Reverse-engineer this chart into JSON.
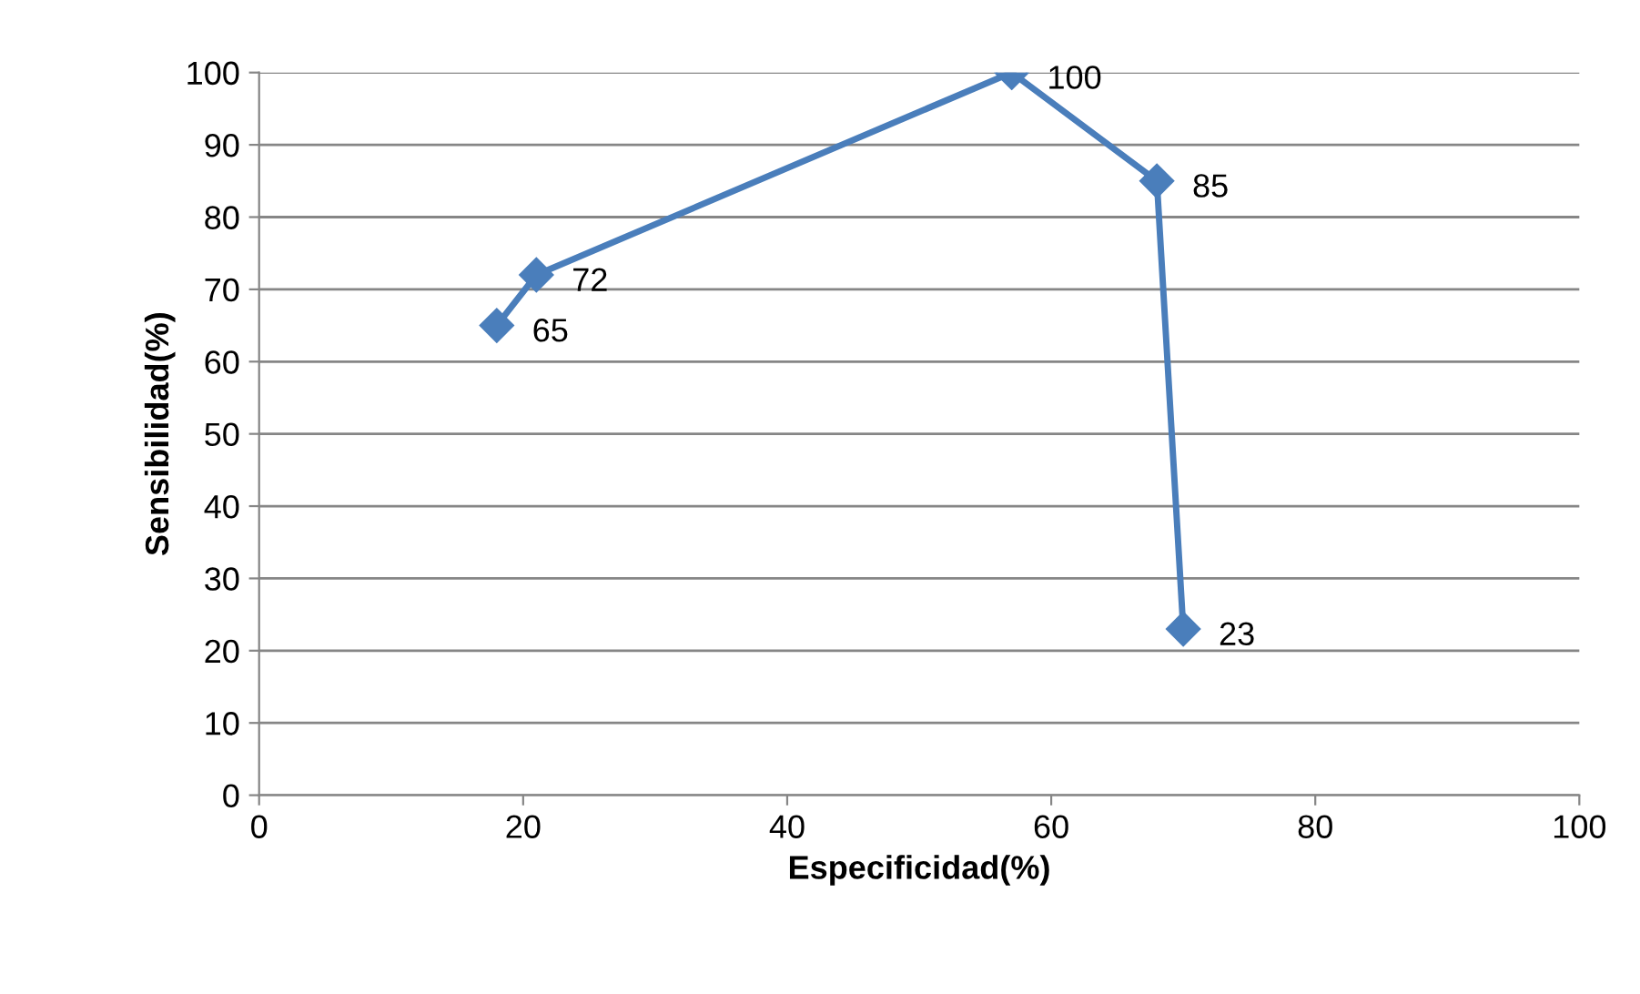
{
  "chart_data": {
    "type": "line",
    "xlabel": "Especificidad(%)",
    "ylabel": "Sensibilidad(%)",
    "x": [
      18,
      21,
      57,
      68,
      70
    ],
    "series": [
      {
        "color": "#4a7ebb",
        "values": [
          65,
          72,
          100,
          85,
          23
        ]
      }
    ],
    "xlim": [
      0,
      100
    ],
    "xticks": [
      0,
      20,
      40,
      60,
      80,
      100
    ],
    "ylim": [
      0,
      100
    ],
    "yticks": [
      0,
      10,
      20,
      30,
      40,
      50,
      60,
      70,
      80,
      90,
      100
    ],
    "grid": "y",
    "marker": "diamond",
    "line_style": "solid",
    "data_labels": true
  }
}
